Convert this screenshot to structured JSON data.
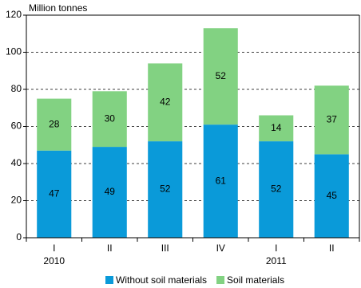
{
  "chart_data": {
    "type": "stacked_bar",
    "y_axis_label": "Million tonnes",
    "categories": [
      "I",
      "II",
      "III",
      "IV",
      "I",
      "II"
    ],
    "category_groups": [
      "2010",
      null,
      null,
      null,
      "2011",
      null
    ],
    "series": [
      {
        "name": "Without soil materials",
        "color": "#0a9ad9",
        "values": [
          47,
          49,
          52,
          61,
          52,
          45
        ]
      },
      {
        "name": "Soil materials",
        "color": "#82d282",
        "values": [
          28,
          30,
          42,
          52,
          14,
          37
        ]
      }
    ],
    "ylim": [
      0,
      120
    ],
    "yticks": [
      0,
      20,
      40,
      60,
      80,
      100,
      120
    ],
    "grid": true,
    "legend": "bottom"
  }
}
